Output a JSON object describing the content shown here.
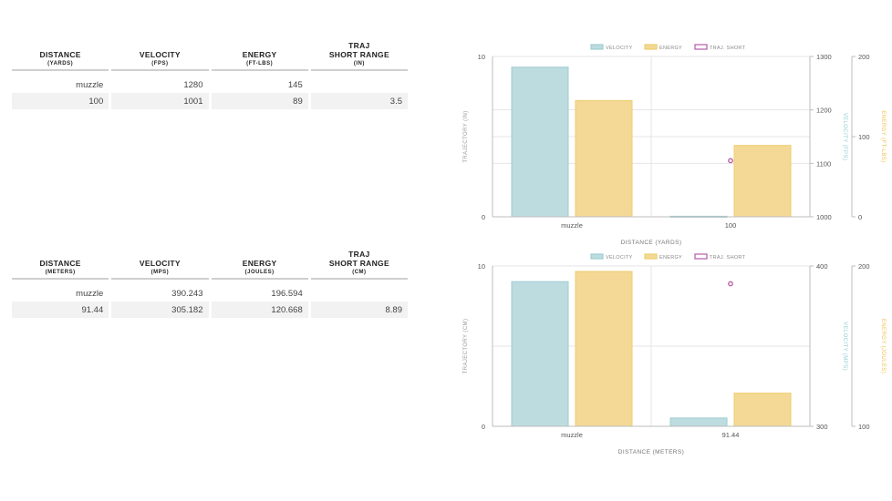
{
  "tables": [
    {
      "id": "imperial",
      "headers": [
        {
          "line1": "DISTANCE",
          "line2": "",
          "unit": "(YARDS)"
        },
        {
          "line1": "VELOCITY",
          "line2": "",
          "unit": "(FPS)"
        },
        {
          "line1": "ENERGY",
          "line2": "",
          "unit": "(FT-LBS)"
        },
        {
          "line1": "TRAJ",
          "line2": "SHORT RANGE",
          "unit": "(IN)"
        }
      ],
      "rows": [
        [
          "muzzle",
          "1280",
          "145",
          ""
        ],
        [
          "100",
          "1001",
          "89",
          "3.5"
        ]
      ]
    },
    {
      "id": "metric",
      "headers": [
        {
          "line1": "DISTANCE",
          "line2": "",
          "unit": "(METERS)"
        },
        {
          "line1": "VELOCITY",
          "line2": "",
          "unit": "(MPS)"
        },
        {
          "line1": "ENERGY",
          "line2": "",
          "unit": "(JOULES)"
        },
        {
          "line1": "TRAJ",
          "line2": "SHORT RANGE",
          "unit": "(CM)"
        }
      ],
      "rows": [
        [
          "muzzle",
          "390.243",
          "196.594",
          ""
        ],
        [
          "91.44",
          "305.182",
          "120.668",
          "8.89"
        ]
      ]
    }
  ],
  "colors": {
    "velocity_fill": "#bddcdf",
    "velocity_stroke": "#9fcdd2",
    "energy_fill": "#f3d995",
    "energy_stroke": "#edcd6f",
    "traj_point": "#b55aa6",
    "velocity_axis_title": "#8fcfd4",
    "energy_axis_title": "#f0c24d",
    "grid": "#e6e6e6",
    "axis": "#bdbdbd",
    "tick_text": "#555555"
  },
  "chart_data": [
    {
      "type": "bar",
      "categories": [
        "muzzle",
        "100"
      ],
      "xlabel": "DISTANCE (YARDS)",
      "legend": [
        "VELOCITY",
        "ENERGY",
        "TRAJ. SHORT"
      ],
      "legend_position": "top",
      "series": [
        {
          "name": "VELOCITY",
          "axis": "velocity",
          "values": [
            1280,
            1001
          ]
        },
        {
          "name": "ENERGY",
          "axis": "energy",
          "values": [
            145,
            89
          ]
        },
        {
          "name": "TRAJ. SHORT",
          "axis": "trajectory",
          "kind": "point",
          "values": [
            null,
            3.5
          ]
        }
      ],
      "axes": {
        "trajectory": {
          "title": "TRAJECTORY (IN)",
          "side": "left",
          "range": [
            0,
            10
          ],
          "ticks": [
            "0",
            "10"
          ]
        },
        "velocity": {
          "title": "VELOCITY (FPS)",
          "side": "right",
          "range": [
            1000,
            1300
          ],
          "ticks": [
            "1000",
            "1100",
            "1200",
            "1300"
          ]
        },
        "energy": {
          "title": "ENERGY (FT-LBS)",
          "side": "right",
          "range": [
            0,
            200
          ],
          "ticks": [
            "0",
            "100",
            "200"
          ]
        }
      },
      "grid": true
    },
    {
      "type": "bar",
      "categories": [
        "muzzle",
        "91.44"
      ],
      "xlabel": "DISTANCE (METERS)",
      "legend": [
        "VELOCITY",
        "ENERGY",
        "TRAJ. SHORT"
      ],
      "legend_position": "top",
      "series": [
        {
          "name": "VELOCITY",
          "axis": "velocity",
          "values": [
            390.243,
            305.182
          ]
        },
        {
          "name": "ENERGY",
          "axis": "energy",
          "values": [
            196.594,
            120.668
          ]
        },
        {
          "name": "TRAJ. SHORT",
          "axis": "trajectory",
          "kind": "point",
          "values": [
            null,
            8.89
          ]
        }
      ],
      "axes": {
        "trajectory": {
          "title": "TRAJECTORY (CM)",
          "side": "left",
          "range": [
            0,
            10
          ],
          "ticks": [
            "0",
            "10"
          ]
        },
        "velocity": {
          "title": "VELOCITY (MPS)",
          "side": "right",
          "range": [
            300,
            400
          ],
          "ticks": [
            "300",
            "400"
          ]
        },
        "energy": {
          "title": "ENERGY (JOULES)",
          "side": "right",
          "range": [
            100,
            200
          ],
          "ticks": [
            "100",
            "200"
          ]
        }
      },
      "grid": true
    }
  ]
}
